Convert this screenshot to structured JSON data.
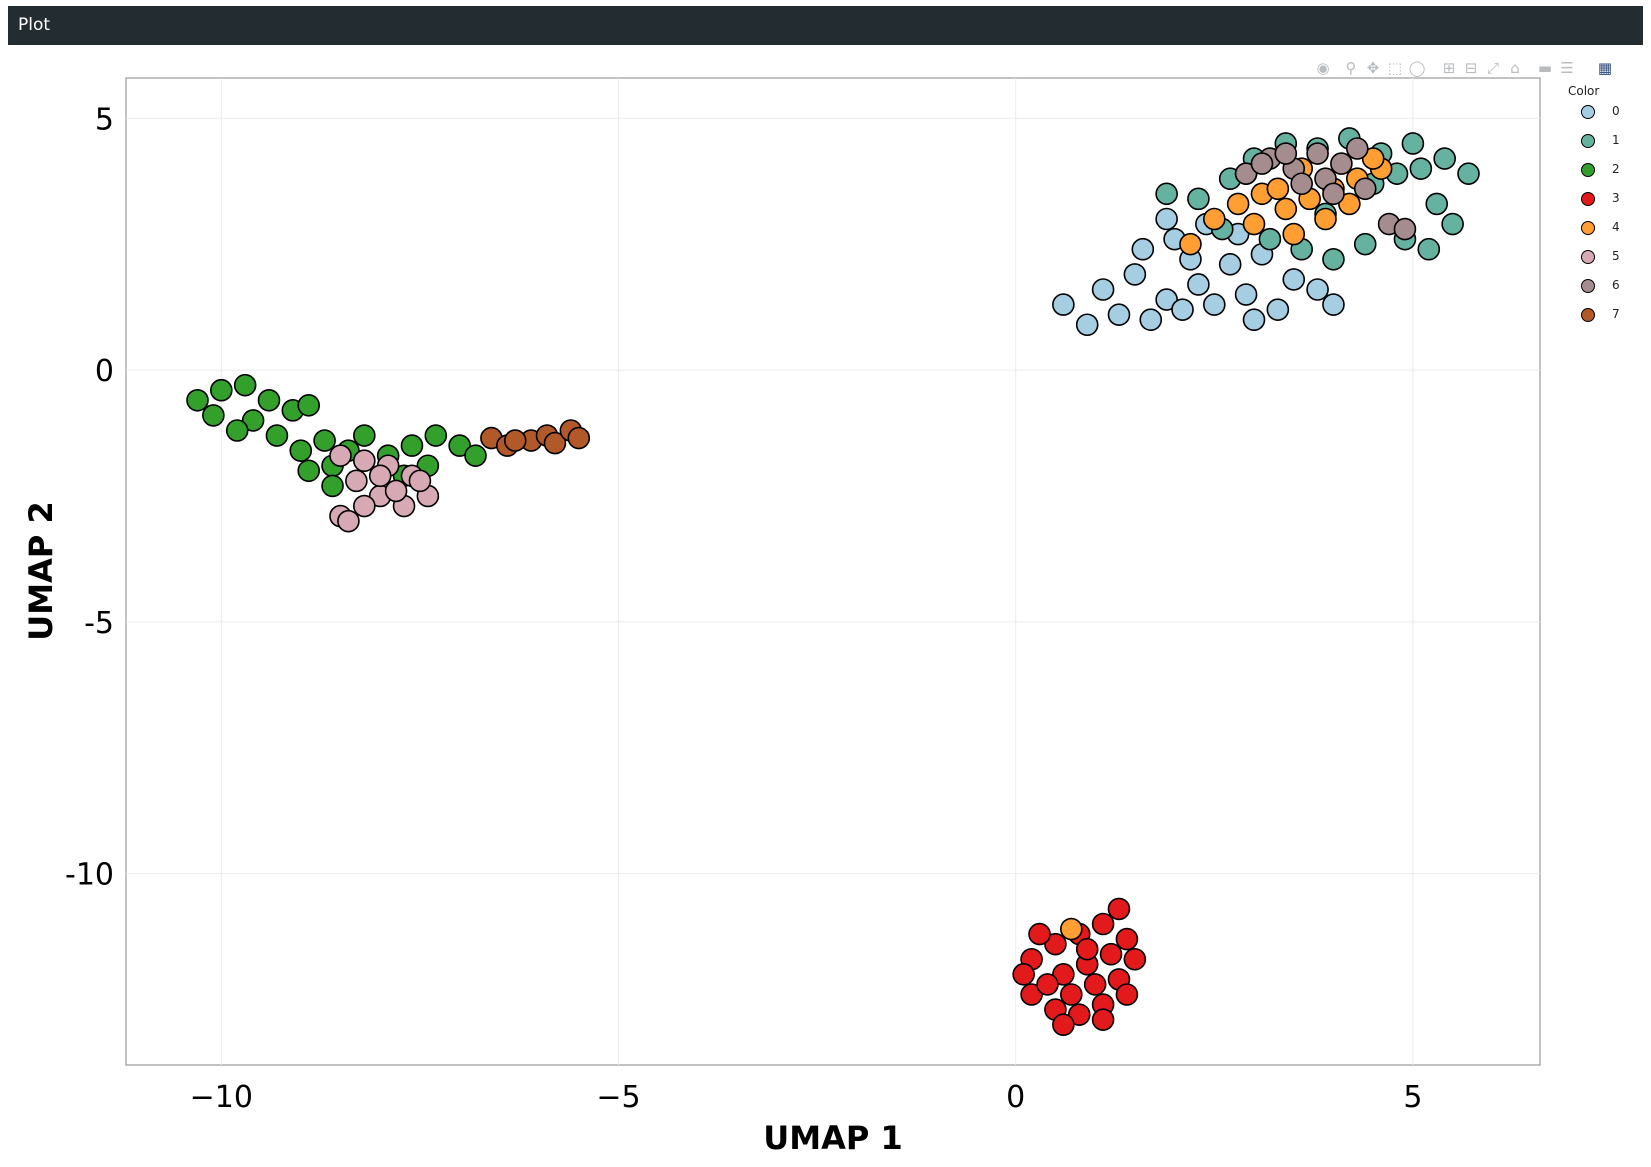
{
  "window": {
    "title": "Plot"
  },
  "toolbar": {
    "icons": [
      "camera-icon",
      "zoom-icon",
      "pan-icon",
      "box-select-icon",
      "lasso-icon",
      "zoom-in-icon",
      "zoom-out-icon",
      "autoscale-icon",
      "home-icon",
      "spike-lines-icon",
      "compare-hover-icon",
      "plotly-logo-icon"
    ]
  },
  "chart_data": {
    "type": "scatter",
    "xlabel": "UMAP 1",
    "ylabel": "UMAP 2",
    "xlim": [
      -11.2,
      6.6
    ],
    "ylim": [
      -13.8,
      5.8
    ],
    "xticks": [
      -10,
      -5,
      0,
      5
    ],
    "yticks": [
      5,
      0,
      -5,
      -10
    ],
    "grid": true,
    "legend": {
      "title": "Color",
      "placement": "right"
    },
    "series": [
      {
        "name": "0",
        "color": "#a6cee3",
        "points": [
          [
            1.1,
            1.6
          ],
          [
            1.5,
            1.9
          ],
          [
            1.9,
            1.4
          ],
          [
            2.3,
            1.7
          ],
          [
            2.7,
            2.1
          ],
          [
            3.1,
            2.3
          ],
          [
            3.5,
            1.8
          ],
          [
            1.3,
            1.1
          ],
          [
            1.7,
            1.0
          ],
          [
            2.1,
            1.2
          ],
          [
            2.5,
            1.3
          ],
          [
            2.9,
            1.5
          ],
          [
            3.3,
            1.2
          ],
          [
            3.8,
            1.6
          ],
          [
            1.6,
            2.4
          ],
          [
            2.0,
            2.6
          ],
          [
            2.4,
            2.9
          ],
          [
            2.8,
            2.7
          ],
          [
            1.9,
            3.0
          ],
          [
            3.0,
            1.0
          ],
          [
            0.6,
            1.3
          ],
          [
            0.9,
            0.9
          ],
          [
            4.0,
            1.3
          ],
          [
            2.2,
            2.2
          ]
        ]
      },
      {
        "name": "1",
        "color": "#66b2a0",
        "points": [
          [
            3.0,
            4.2
          ],
          [
            3.4,
            4.5
          ],
          [
            3.8,
            4.4
          ],
          [
            4.2,
            4.6
          ],
          [
            4.6,
            4.3
          ],
          [
            5.0,
            4.5
          ],
          [
            5.4,
            4.2
          ],
          [
            5.7,
            3.9
          ],
          [
            5.3,
            3.3
          ],
          [
            5.5,
            2.9
          ],
          [
            5.2,
            2.4
          ],
          [
            4.9,
            2.6
          ],
          [
            4.4,
            2.5
          ],
          [
            4.0,
            2.2
          ],
          [
            3.6,
            2.4
          ],
          [
            3.2,
            2.6
          ],
          [
            2.6,
            2.8
          ],
          [
            2.3,
            3.4
          ],
          [
            2.7,
            3.8
          ],
          [
            4.5,
            3.7
          ],
          [
            4.8,
            3.9
          ],
          [
            3.9,
            3.1
          ],
          [
            1.9,
            3.5
          ],
          [
            5.1,
            4.0
          ]
        ]
      },
      {
        "name": "2",
        "color": "#33a02c",
        "points": [
          [
            -10.3,
            -0.6
          ],
          [
            -10.0,
            -0.4
          ],
          [
            -9.7,
            -0.3
          ],
          [
            -9.4,
            -0.6
          ],
          [
            -9.1,
            -0.8
          ],
          [
            -8.9,
            -0.7
          ],
          [
            -9.6,
            -1.0
          ],
          [
            -9.3,
            -1.3
          ],
          [
            -9.0,
            -1.6
          ],
          [
            -8.7,
            -1.4
          ],
          [
            -8.4,
            -1.6
          ],
          [
            -8.2,
            -1.3
          ],
          [
            -7.9,
            -1.7
          ],
          [
            -7.6,
            -1.5
          ],
          [
            -7.3,
            -1.3
          ],
          [
            -7.0,
            -1.5
          ],
          [
            -6.8,
            -1.7
          ],
          [
            -9.8,
            -1.2
          ],
          [
            -8.6,
            -1.9
          ],
          [
            -7.4,
            -1.9
          ],
          [
            -10.1,
            -0.9
          ],
          [
            -8.6,
            -2.3
          ],
          [
            -8.9,
            -2.0
          ],
          [
            -7.7,
            -2.1
          ]
        ]
      },
      {
        "name": "3",
        "color": "#e31a1c",
        "points": [
          [
            0.2,
            -11.7
          ],
          [
            0.5,
            -11.4
          ],
          [
            0.8,
            -11.2
          ],
          [
            1.1,
            -11.0
          ],
          [
            1.4,
            -11.3
          ],
          [
            1.5,
            -11.7
          ],
          [
            1.3,
            -12.1
          ],
          [
            1.4,
            -12.4
          ],
          [
            1.1,
            -12.6
          ],
          [
            0.8,
            -12.8
          ],
          [
            0.5,
            -12.7
          ],
          [
            0.2,
            -12.4
          ],
          [
            0.1,
            -12.0
          ],
          [
            0.6,
            -12.0
          ],
          [
            0.9,
            -11.8
          ],
          [
            1.2,
            -11.6
          ],
          [
            0.4,
            -12.2
          ],
          [
            0.7,
            -12.4
          ],
          [
            1.0,
            -12.2
          ],
          [
            0.9,
            -11.5
          ],
          [
            1.3,
            -10.7
          ],
          [
            0.6,
            -13.0
          ],
          [
            0.3,
            -11.2
          ],
          [
            1.1,
            -12.9
          ]
        ]
      },
      {
        "name": "4",
        "color": "#ff9f33",
        "points": [
          [
            2.2,
            2.5
          ],
          [
            2.5,
            3.0
          ],
          [
            2.8,
            3.3
          ],
          [
            3.1,
            3.5
          ],
          [
            3.4,
            3.2
          ],
          [
            3.7,
            3.4
          ],
          [
            4.0,
            3.6
          ],
          [
            4.3,
            3.8
          ],
          [
            4.6,
            4.0
          ],
          [
            3.0,
            2.9
          ],
          [
            3.3,
            3.6
          ],
          [
            3.9,
            3.0
          ],
          [
            4.2,
            3.3
          ],
          [
            3.5,
            2.7
          ],
          [
            2.9,
            3.9
          ],
          [
            4.5,
            4.2
          ],
          [
            3.6,
            4.0
          ],
          [
            0.7,
            -11.1
          ]
        ]
      },
      {
        "name": "5",
        "color": "#d7a9b5",
        "points": [
          [
            -8.5,
            -1.7
          ],
          [
            -8.2,
            -1.8
          ],
          [
            -7.9,
            -1.9
          ],
          [
            -7.6,
            -2.1
          ],
          [
            -8.3,
            -2.2
          ],
          [
            -8.0,
            -2.5
          ],
          [
            -7.7,
            -2.7
          ],
          [
            -7.4,
            -2.5
          ],
          [
            -8.5,
            -2.9
          ],
          [
            -8.2,
            -2.7
          ],
          [
            -8.0,
            -2.1
          ],
          [
            -7.8,
            -2.4
          ],
          [
            -8.4,
            -3.0
          ],
          [
            -7.5,
            -2.2
          ]
        ]
      },
      {
        "name": "6",
        "color": "#a48c8f",
        "points": [
          [
            2.9,
            3.9
          ],
          [
            3.2,
            4.2
          ],
          [
            3.5,
            4.0
          ],
          [
            3.8,
            4.3
          ],
          [
            4.1,
            4.1
          ],
          [
            3.6,
            3.7
          ],
          [
            4.4,
            3.6
          ],
          [
            3.1,
            4.1
          ],
          [
            3.9,
            3.8
          ],
          [
            4.7,
            2.9
          ],
          [
            4.9,
            2.8
          ],
          [
            3.4,
            4.3
          ],
          [
            4.3,
            4.4
          ],
          [
            4.0,
            3.5
          ]
        ]
      },
      {
        "name": "7",
        "color": "#b15928",
        "points": [
          [
            -6.6,
            -1.35
          ],
          [
            -6.4,
            -1.5
          ],
          [
            -6.1,
            -1.4
          ],
          [
            -5.9,
            -1.3
          ],
          [
            -5.8,
            -1.45
          ],
          [
            -5.6,
            -1.2
          ],
          [
            -5.5,
            -1.35
          ],
          [
            -6.3,
            -1.4
          ]
        ]
      }
    ]
  }
}
